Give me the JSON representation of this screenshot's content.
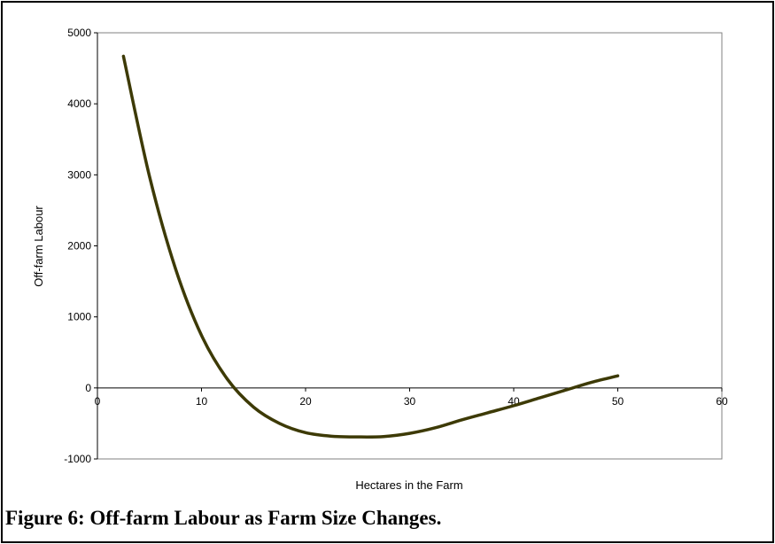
{
  "caption": "Figure 6:  Off-farm Labour as Farm Size Changes.",
  "colors": {
    "curve": "#3d3a06",
    "axis": "#000000",
    "plot_border": "#808080"
  },
  "chart_data": {
    "type": "line",
    "xlabel": "Hectares in the Farm",
    "ylabel": "Off-farm Labour",
    "xlim": [
      0,
      60
    ],
    "ylim": [
      -1000,
      5000
    ],
    "xticks": [
      0,
      10,
      20,
      30,
      40,
      50,
      60
    ],
    "yticks": [
      -1000,
      0,
      1000,
      2000,
      3000,
      4000,
      5000
    ],
    "grid": false,
    "legend": "none",
    "series": [
      {
        "x": [
          2.5,
          5,
          7.5,
          10,
          12.5,
          15,
          17.5,
          20,
          22.5,
          25,
          27.5,
          30,
          32.5,
          35,
          37.5,
          40,
          42.5,
          45,
          47.5,
          50
        ],
        "y": [
          4670,
          2980,
          1680,
          740,
          120,
          -270,
          -500,
          -630,
          -680,
          -690,
          -685,
          -640,
          -560,
          -450,
          -350,
          -250,
          -140,
          -30,
          80,
          170
        ]
      }
    ]
  }
}
